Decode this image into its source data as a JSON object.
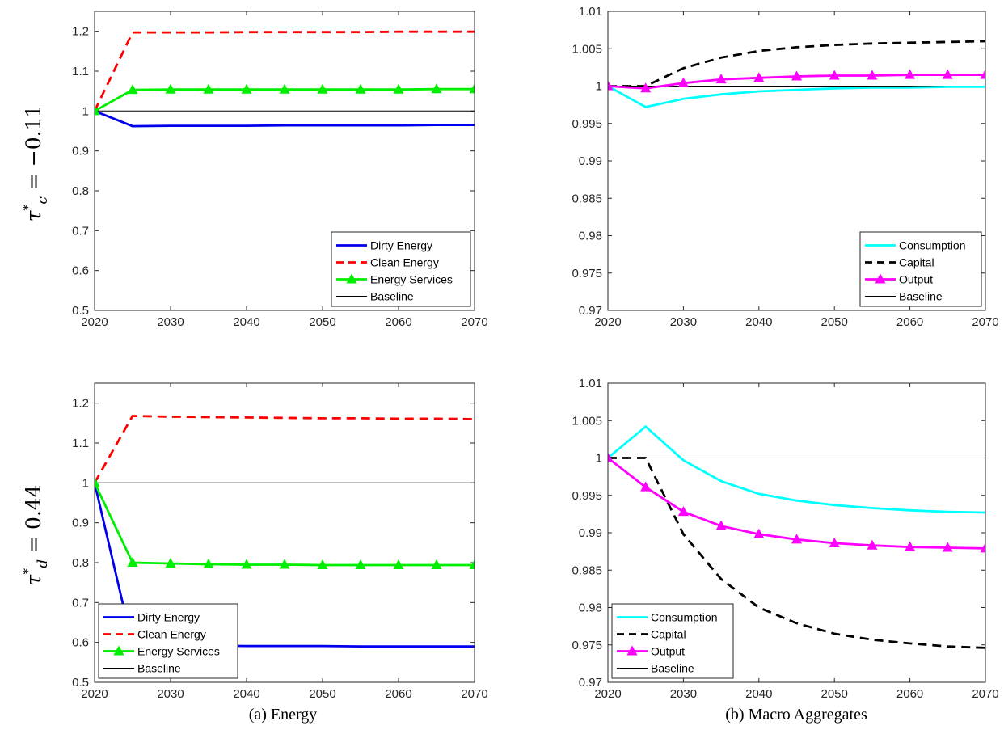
{
  "row_labels": [
    {
      "sym": "τ",
      "sup": "*",
      "sub": "c",
      "rest": " = −0.11"
    },
    {
      "sym": "τ",
      "sup": "*",
      "sub": "d",
      "rest": " = 0.44"
    }
  ],
  "captions": [
    "(a) Energy",
    "(b) Macro Aggregates"
  ],
  "colors": {
    "dirty": "#0000ee",
    "clean": "#ff0000",
    "services": "#00ee00",
    "baseline": "#000000",
    "consumption": "#00ffff",
    "capital": "#000000",
    "output": "#ff00ff"
  },
  "chart_data": [
    {
      "id": "energy-top",
      "type": "line",
      "xlim": [
        2020,
        2070
      ],
      "ylim": [
        0.5,
        1.25
      ],
      "xticks": [
        2020,
        2030,
        2040,
        2050,
        2060,
        2070
      ],
      "xtick_labels": [
        "2020",
        "2030",
        "2040",
        "2050",
        "2060",
        "2070"
      ],
      "yticks": [
        0.5,
        0.6,
        0.7,
        0.8,
        0.9,
        1.0,
        1.1,
        1.2
      ],
      "ytick_labels": [
        "0.5",
        "0.6",
        "0.7",
        "0.8",
        "0.9",
        "1",
        "1.1",
        "1.2"
      ],
      "legend_position": "bottom-right",
      "x": [
        2020,
        2025,
        2030,
        2035,
        2040,
        2045,
        2050,
        2055,
        2060,
        2065,
        2070
      ],
      "series": [
        {
          "name": "Dirty Energy",
          "key": "dirty",
          "style": "solid",
          "values": [
            1.0,
            0.962,
            0.963,
            0.963,
            0.963,
            0.964,
            0.964,
            0.964,
            0.964,
            0.965,
            0.965
          ]
        },
        {
          "name": "Clean Energy",
          "key": "clean",
          "style": "dashed",
          "values": [
            1.0,
            1.197,
            1.197,
            1.197,
            1.198,
            1.198,
            1.198,
            1.198,
            1.199,
            1.199,
            1.199
          ]
        },
        {
          "name": "Energy Services",
          "key": "services",
          "style": "solid",
          "marker": "triangle",
          "values": [
            1.0,
            1.053,
            1.054,
            1.054,
            1.054,
            1.054,
            1.054,
            1.054,
            1.054,
            1.055,
            1.055
          ]
        },
        {
          "name": "Baseline",
          "key": "baseline",
          "style": "thin",
          "values": [
            1,
            1,
            1,
            1,
            1,
            1,
            1,
            1,
            1,
            1,
            1
          ]
        }
      ]
    },
    {
      "id": "macro-top",
      "type": "line",
      "xlim": [
        2020,
        2070
      ],
      "ylim": [
        0.97,
        1.01
      ],
      "xticks": [
        2020,
        2030,
        2040,
        2050,
        2060,
        2070
      ],
      "xtick_labels": [
        "2020",
        "2030",
        "2040",
        "2050",
        "2060",
        "2070"
      ],
      "yticks": [
        0.97,
        0.975,
        0.98,
        0.985,
        0.99,
        0.995,
        1.0,
        1.005,
        1.01
      ],
      "ytick_labels": [
        "0.97",
        "0.975",
        "0.98",
        "0.985",
        "0.99",
        "0.995",
        "1",
        "1.005",
        "1.01"
      ],
      "legend_position": "bottom-right",
      "x": [
        2020,
        2025,
        2030,
        2035,
        2040,
        2045,
        2050,
        2055,
        2060,
        2065,
        2070
      ],
      "series": [
        {
          "name": "Consumption",
          "key": "consumption",
          "style": "solid",
          "values": [
            1.0,
            0.9972,
            0.9983,
            0.9989,
            0.9993,
            0.9995,
            0.9997,
            0.9998,
            0.9998,
            0.9999,
            0.9999
          ]
        },
        {
          "name": "Capital",
          "key": "capital",
          "style": "dashed",
          "values": [
            1.0,
            1.0,
            1.0024,
            1.0038,
            1.0047,
            1.0052,
            1.0055,
            1.0057,
            1.0058,
            1.0059,
            1.006
          ]
        },
        {
          "name": "Output",
          "key": "output",
          "style": "solid",
          "marker": "triangle",
          "values": [
            1.0,
            0.9997,
            1.0004,
            1.0009,
            1.0011,
            1.0013,
            1.0014,
            1.0014,
            1.0015,
            1.0015,
            1.0015
          ]
        },
        {
          "name": "Baseline",
          "key": "baseline",
          "style": "thin",
          "values": [
            1,
            1,
            1,
            1,
            1,
            1,
            1,
            1,
            1,
            1,
            1
          ]
        }
      ]
    },
    {
      "id": "energy-bottom",
      "type": "line",
      "xlim": [
        2020,
        2070
      ],
      "ylim": [
        0.5,
        1.25
      ],
      "xticks": [
        2020,
        2030,
        2040,
        2050,
        2060,
        2070
      ],
      "xtick_labels": [
        "2020",
        "2030",
        "2040",
        "2050",
        "2060",
        "2070"
      ],
      "yticks": [
        0.5,
        0.6,
        0.7,
        0.8,
        0.9,
        1.0,
        1.1,
        1.2
      ],
      "ytick_labels": [
        "0.5",
        "0.6",
        "0.7",
        "0.8",
        "0.9",
        "1",
        "1.1",
        "1.2"
      ],
      "legend_position": "bottom-left",
      "x": [
        2020,
        2025,
        2030,
        2035,
        2040,
        2045,
        2050,
        2055,
        2060,
        2065,
        2070
      ],
      "series": [
        {
          "name": "Dirty Energy",
          "key": "dirty",
          "style": "solid",
          "values": [
            1.0,
            0.593,
            0.592,
            0.592,
            0.591,
            0.591,
            0.591,
            0.59,
            0.59,
            0.59,
            0.59
          ]
        },
        {
          "name": "Clean Energy",
          "key": "clean",
          "style": "dashed",
          "values": [
            1.0,
            1.168,
            1.166,
            1.165,
            1.164,
            1.163,
            1.162,
            1.162,
            1.161,
            1.161,
            1.16
          ]
        },
        {
          "name": "Energy Services",
          "key": "services",
          "style": "solid",
          "marker": "triangle",
          "values": [
            1.0,
            0.8,
            0.798,
            0.796,
            0.795,
            0.795,
            0.794,
            0.794,
            0.794,
            0.794,
            0.794
          ]
        },
        {
          "name": "Baseline",
          "key": "baseline",
          "style": "thin",
          "values": [
            1,
            1,
            1,
            1,
            1,
            1,
            1,
            1,
            1,
            1,
            1
          ]
        }
      ]
    },
    {
      "id": "macro-bottom",
      "type": "line",
      "xlim": [
        2020,
        2070
      ],
      "ylim": [
        0.97,
        1.01
      ],
      "xticks": [
        2020,
        2030,
        2040,
        2050,
        2060,
        2070
      ],
      "xtick_labels": [
        "2020",
        "2030",
        "2040",
        "2050",
        "2060",
        "2070"
      ],
      "yticks": [
        0.97,
        0.975,
        0.98,
        0.985,
        0.99,
        0.995,
        1.0,
        1.005,
        1.01
      ],
      "ytick_labels": [
        "0.97",
        "0.975",
        "0.98",
        "0.985",
        "0.99",
        "0.995",
        "1",
        "1.005",
        "1.01"
      ],
      "legend_position": "bottom-left",
      "x": [
        2020,
        2025,
        2030,
        2035,
        2040,
        2045,
        2050,
        2055,
        2060,
        2065,
        2070
      ],
      "series": [
        {
          "name": "Consumption",
          "key": "consumption",
          "style": "solid",
          "values": [
            1.0,
            1.0042,
            0.9997,
            0.9969,
            0.9952,
            0.9943,
            0.9937,
            0.9933,
            0.993,
            0.9928,
            0.9927
          ]
        },
        {
          "name": "Capital",
          "key": "capital",
          "style": "dashed",
          "values": [
            1.0,
            1.0,
            0.9898,
            0.9838,
            0.98,
            0.9779,
            0.9765,
            0.9757,
            0.9752,
            0.9748,
            0.9746
          ]
        },
        {
          "name": "Output",
          "key": "output",
          "style": "solid",
          "marker": "triangle",
          "values": [
            1.0,
            0.9961,
            0.9928,
            0.9909,
            0.9898,
            0.9891,
            0.9886,
            0.9883,
            0.9881,
            0.988,
            0.9879
          ]
        },
        {
          "name": "Baseline",
          "key": "baseline",
          "style": "thin",
          "values": [
            1,
            1,
            1,
            1,
            1,
            1,
            1,
            1,
            1,
            1,
            1
          ]
        }
      ]
    }
  ]
}
